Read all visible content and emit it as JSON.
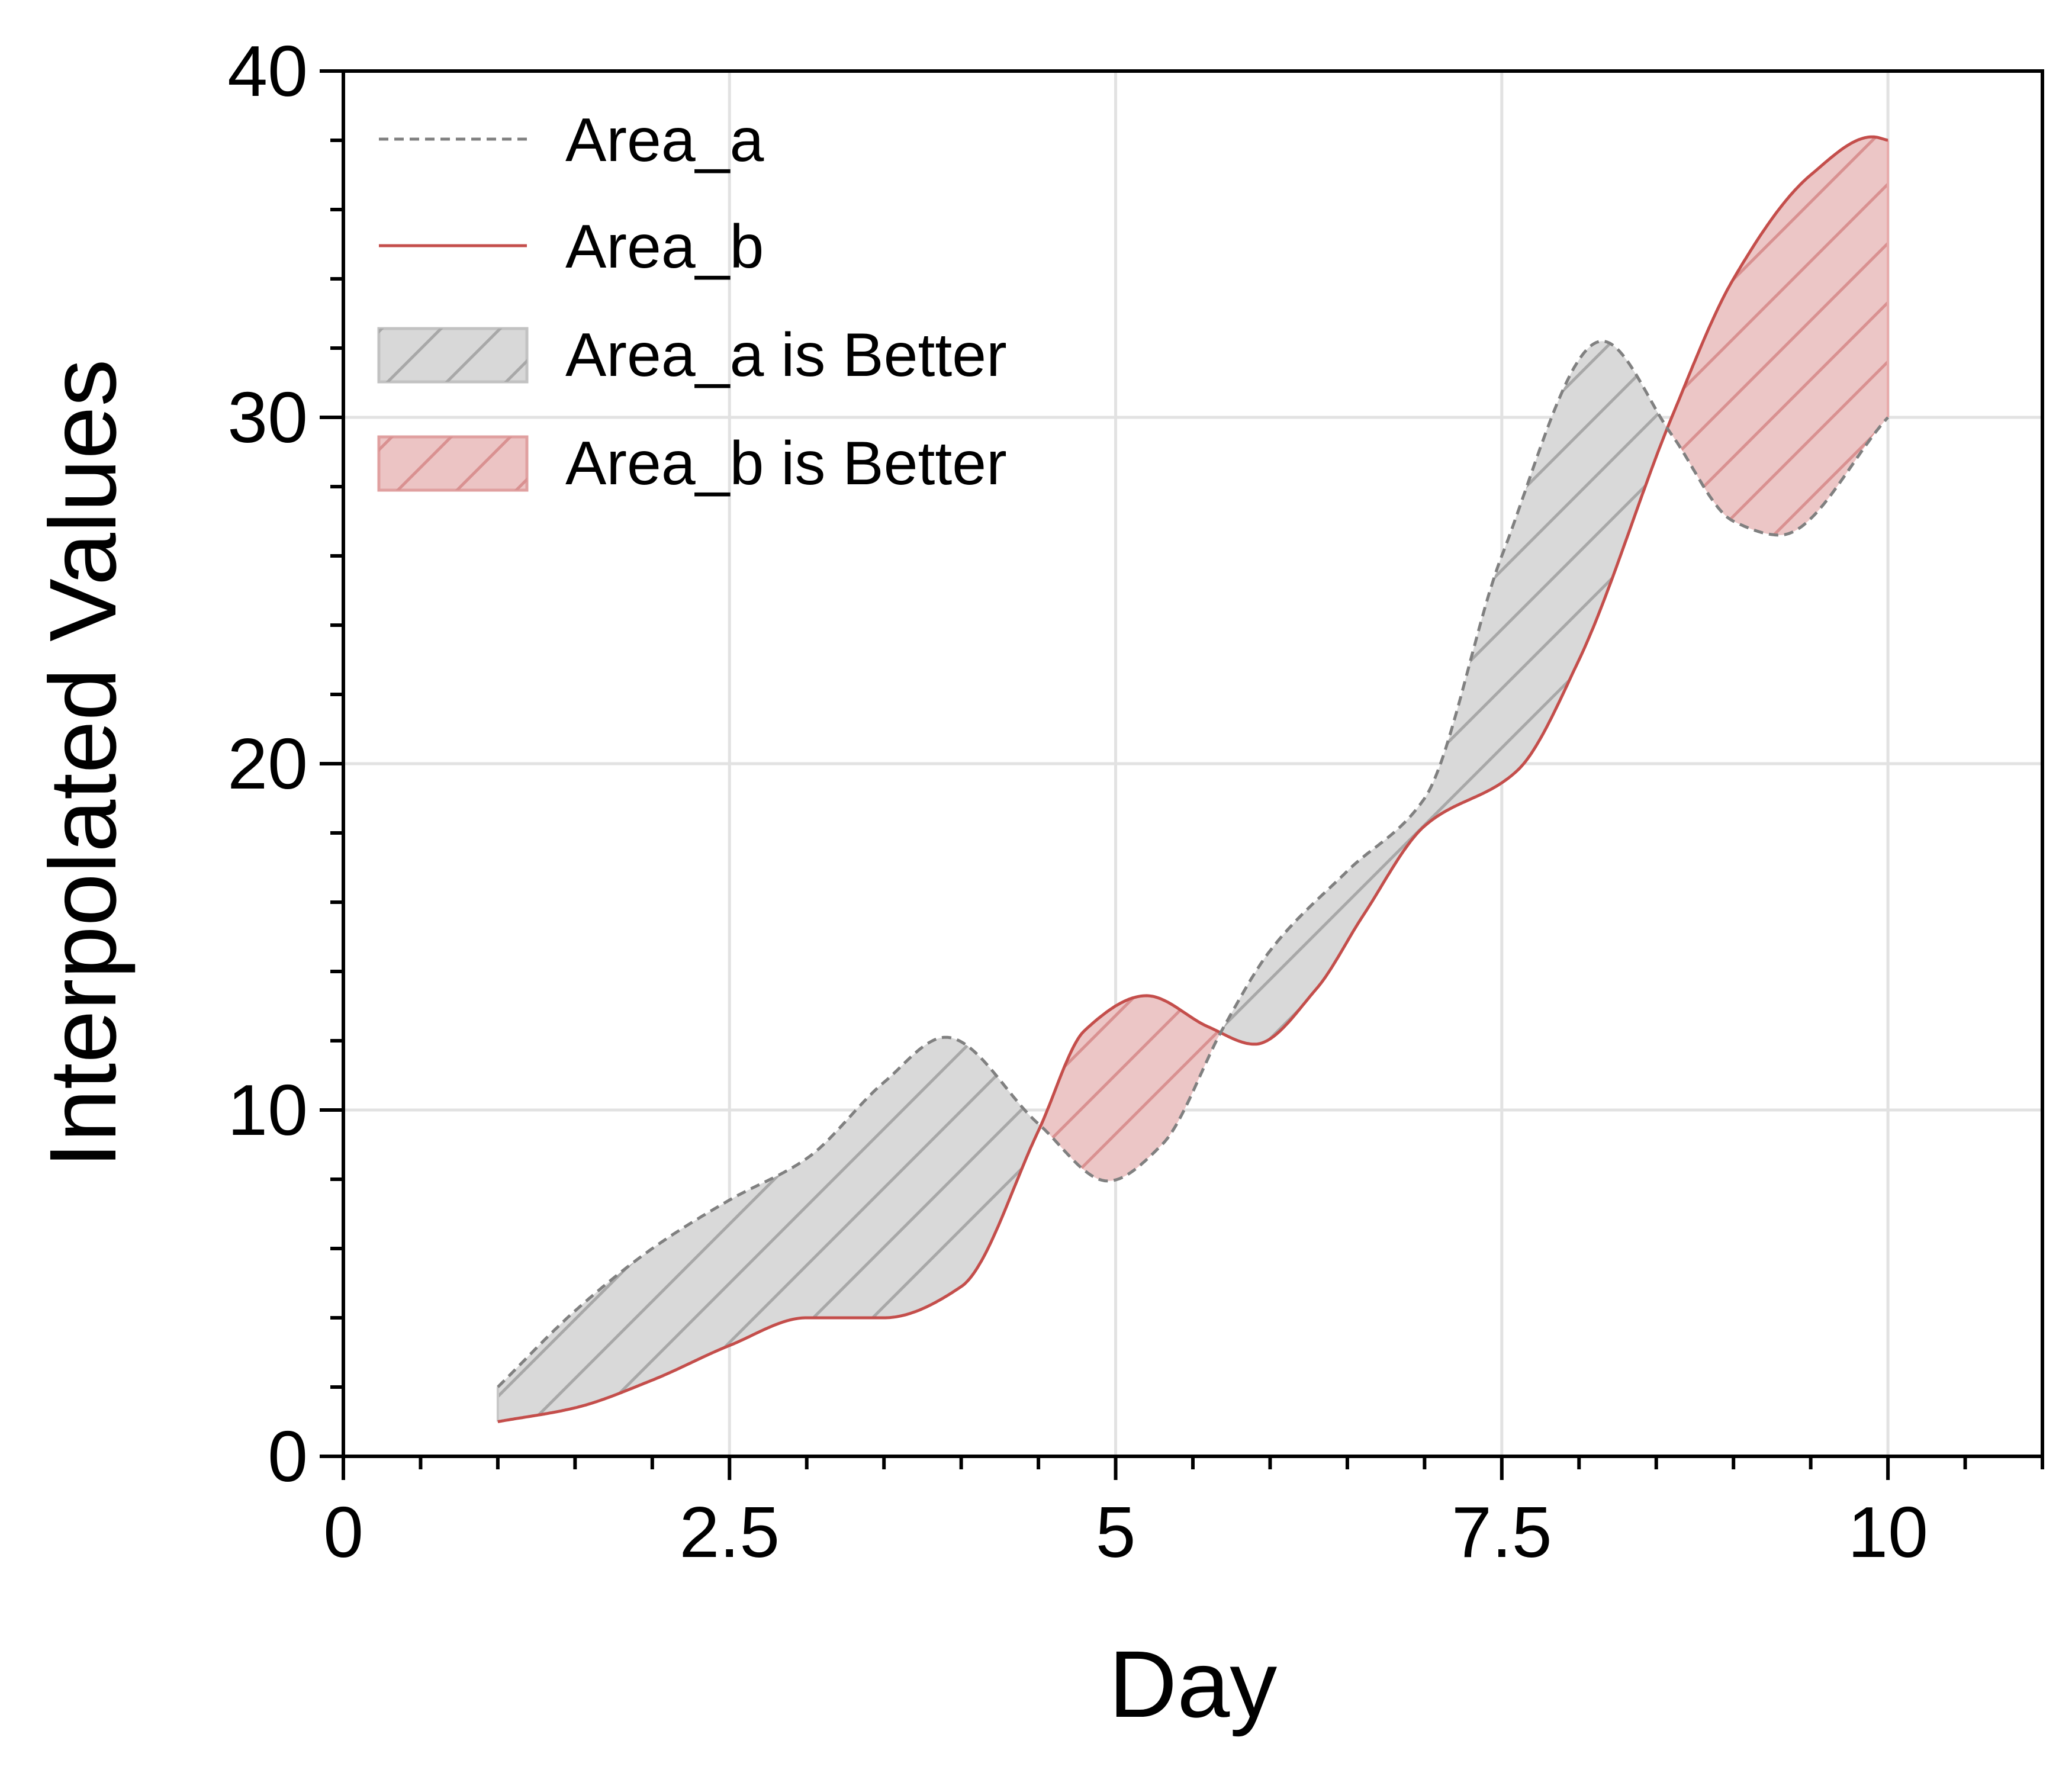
{
  "chart_data": {
    "type": "area",
    "xlabel": "Day",
    "ylabel": "Interpolated Values",
    "xlim": [
      0,
      11
    ],
    "ylim": [
      0,
      40
    ],
    "x_ticks": [
      {
        "value": 0,
        "label": "0"
      },
      {
        "value": 2.5,
        "label": "2.5"
      },
      {
        "value": 5,
        "label": "5"
      },
      {
        "value": 7.5,
        "label": "7.5"
      },
      {
        "value": 10,
        "label": "10"
      }
    ],
    "y_ticks": [
      {
        "value": 0,
        "label": "0"
      },
      {
        "value": 10,
        "label": "10"
      },
      {
        "value": 20,
        "label": "20"
      },
      {
        "value": 30,
        "label": "30"
      },
      {
        "value": 40,
        "label": "40"
      }
    ],
    "x_minor_step": 0.5,
    "y_minor_step": 2,
    "grid": true,
    "legend_position": "top-left",
    "series": [
      {
        "name": "Area_a",
        "style": "dashed",
        "color": "#808080",
        "x": [
          1.0,
          1.5,
          2.0,
          2.5,
          3.0,
          3.5,
          3.9,
          4.5,
          4.95,
          5.3,
          5.7,
          6.0,
          6.5,
          7.0,
          7.5,
          8.15,
          8.6,
          9.0,
          9.3,
          10.0
        ],
        "y": [
          2.0,
          4.2,
          6.0,
          7.4,
          8.6,
          10.8,
          12.1,
          9.6,
          7.95,
          9.0,
          12.4,
          14.6,
          16.9,
          19.0,
          26.0,
          32.2,
          29.5,
          27.0,
          26.6,
          30.0
        ]
      },
      {
        "name": "Area_b",
        "style": "solid",
        "color": "#c44e4b",
        "x": [
          1.0,
          1.5,
          2.0,
          2.5,
          3.0,
          3.5,
          4.0,
          4.5,
          4.8,
          5.2,
          5.6,
          5.9,
          6.3,
          6.6,
          7.0,
          7.6,
          8.0,
          8.6,
          9.0,
          9.5,
          9.9,
          10.0
        ],
        "y": [
          1.0,
          1.4,
          2.2,
          3.2,
          4.0,
          4.0,
          4.9,
          9.4,
          12.3,
          13.3,
          12.4,
          11.9,
          13.5,
          15.6,
          18.2,
          19.8,
          23.0,
          30.0,
          34.0,
          37.0,
          38.1,
          38.0
        ]
      }
    ],
    "fill_labels": [
      {
        "name": "Area_a is Better",
        "color": "#c8c8c8"
      },
      {
        "name": "Area_b is Better",
        "color": "#e8a6a6"
      }
    ]
  }
}
